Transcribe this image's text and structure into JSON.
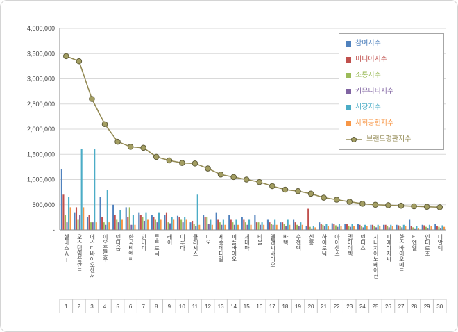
{
  "chart_data": {
    "type": "bar",
    "subtype": "combo-bar-line",
    "title": "",
    "grid": true,
    "legend_position": "top-right",
    "y_axis": {
      "min": 0,
      "max": 4000000,
      "step": 500000,
      "tick_labels": [
        "-",
        "500,000",
        "1,000,000",
        "1,500,000",
        "2,000,000",
        "2,500,000",
        "3,000,000",
        "3,500,000",
        "4,000,000"
      ]
    },
    "categories": [
      "셀바스AI",
      "오스템임플란트",
      "에스디바이오센서",
      "이오플로우",
      "덴티움",
      "한국비엔씨",
      "인바디",
      "루트로닉",
      "레이",
      "이루다",
      "클래시스",
      "디오",
      "세종메디칼",
      "피플바이오",
      "제테마",
      "비올",
      "엘앤씨바이오",
      "바텍",
      "수젠텍",
      "신흥",
      "하이로닉",
      "아이센스",
      "엠아이텍",
      "덴티스",
      "시너지이노베이션",
      "피에이치씨",
      "한스바이오메드",
      "티엔엘",
      "인터로조",
      "디알텍"
    ],
    "category_numbers": [
      "1",
      "2",
      "3",
      "4",
      "5",
      "6",
      "7",
      "8",
      "9",
      "10",
      "11",
      "12",
      "13",
      "14",
      "15",
      "16",
      "17",
      "18",
      "19",
      "20",
      "21",
      "22",
      "23",
      "24",
      "25",
      "26",
      "27",
      "28",
      "29",
      "30"
    ],
    "series": [
      {
        "name": "참여지수",
        "color": "#4F81BD",
        "values": [
          1200000,
          350000,
          250000,
          650000,
          500000,
          450000,
          350000,
          300000,
          300000,
          280000,
          150000,
          300000,
          350000,
          300000,
          250000,
          300000,
          200000,
          150000,
          200000,
          80000,
          150000,
          130000,
          120000,
          110000,
          100000,
          100000,
          100000,
          200000,
          100000,
          120000
        ]
      },
      {
        "name": "미디어지수",
        "color": "#C0504D",
        "values": [
          700000,
          450000,
          300000,
          250000,
          300000,
          250000,
          300000,
          250000,
          350000,
          250000,
          180000,
          250000,
          200000,
          200000,
          200000,
          150000,
          150000,
          150000,
          150000,
          420000,
          120000,
          120000,
          110000,
          100000,
          100000,
          100000,
          90000,
          70000,
          90000,
          80000
        ]
      },
      {
        "name": "소통지수",
        "color": "#9BBB59",
        "values": [
          300000,
          200000,
          150000,
          150000,
          200000,
          450000,
          250000,
          200000,
          150000,
          200000,
          120000,
          250000,
          150000,
          150000,
          150000,
          150000,
          120000,
          120000,
          100000,
          60000,
          100000,
          90000,
          80000,
          80000,
          80000,
          70000,
          70000,
          50000,
          60000,
          60000
        ]
      },
      {
        "name": "커뮤니티지수",
        "color": "#8064A2",
        "values": [
          150000,
          300000,
          150000,
          100000,
          150000,
          100000,
          180000,
          150000,
          130000,
          150000,
          70000,
          120000,
          100000,
          100000,
          100000,
          100000,
          100000,
          80000,
          70000,
          30000,
          70000,
          60000,
          60000,
          50000,
          50000,
          50000,
          50000,
          30000,
          40000,
          40000
        ]
      },
      {
        "name": "시장지수",
        "color": "#4BACC6",
        "values": [
          650000,
          1600000,
          1600000,
          800000,
          400000,
          300000,
          350000,
          350000,
          250000,
          250000,
          700000,
          200000,
          200000,
          200000,
          200000,
          150000,
          200000,
          200000,
          150000,
          80000,
          120000,
          120000,
          110000,
          100000,
          100000,
          100000,
          100000,
          80000,
          100000,
          90000
        ]
      },
      {
        "name": "사회공헌지수",
        "color": "#F79646",
        "values": [
          450000,
          450000,
          150000,
          150000,
          200000,
          100000,
          200000,
          200000,
          200000,
          200000,
          100000,
          100000,
          100000,
          100000,
          100000,
          100000,
          100000,
          100000,
          100000,
          50000,
          80000,
          80000,
          80000,
          80000,
          70000,
          70000,
          70000,
          40000,
          70000,
          60000
        ]
      }
    ],
    "line_series": {
      "name": "브랜드평판지수",
      "color": "#938A54",
      "marker_fill": "#A39E62",
      "marker_stroke": "#5F5C39",
      "values": [
        3450000,
        3350000,
        2600000,
        2100000,
        1750000,
        1650000,
        1630000,
        1450000,
        1380000,
        1330000,
        1320000,
        1220000,
        1100000,
        1050000,
        1000000,
        950000,
        870000,
        800000,
        770000,
        720000,
        640000,
        600000,
        560000,
        520000,
        500000,
        490000,
        480000,
        470000,
        460000,
        450000
      ]
    }
  }
}
